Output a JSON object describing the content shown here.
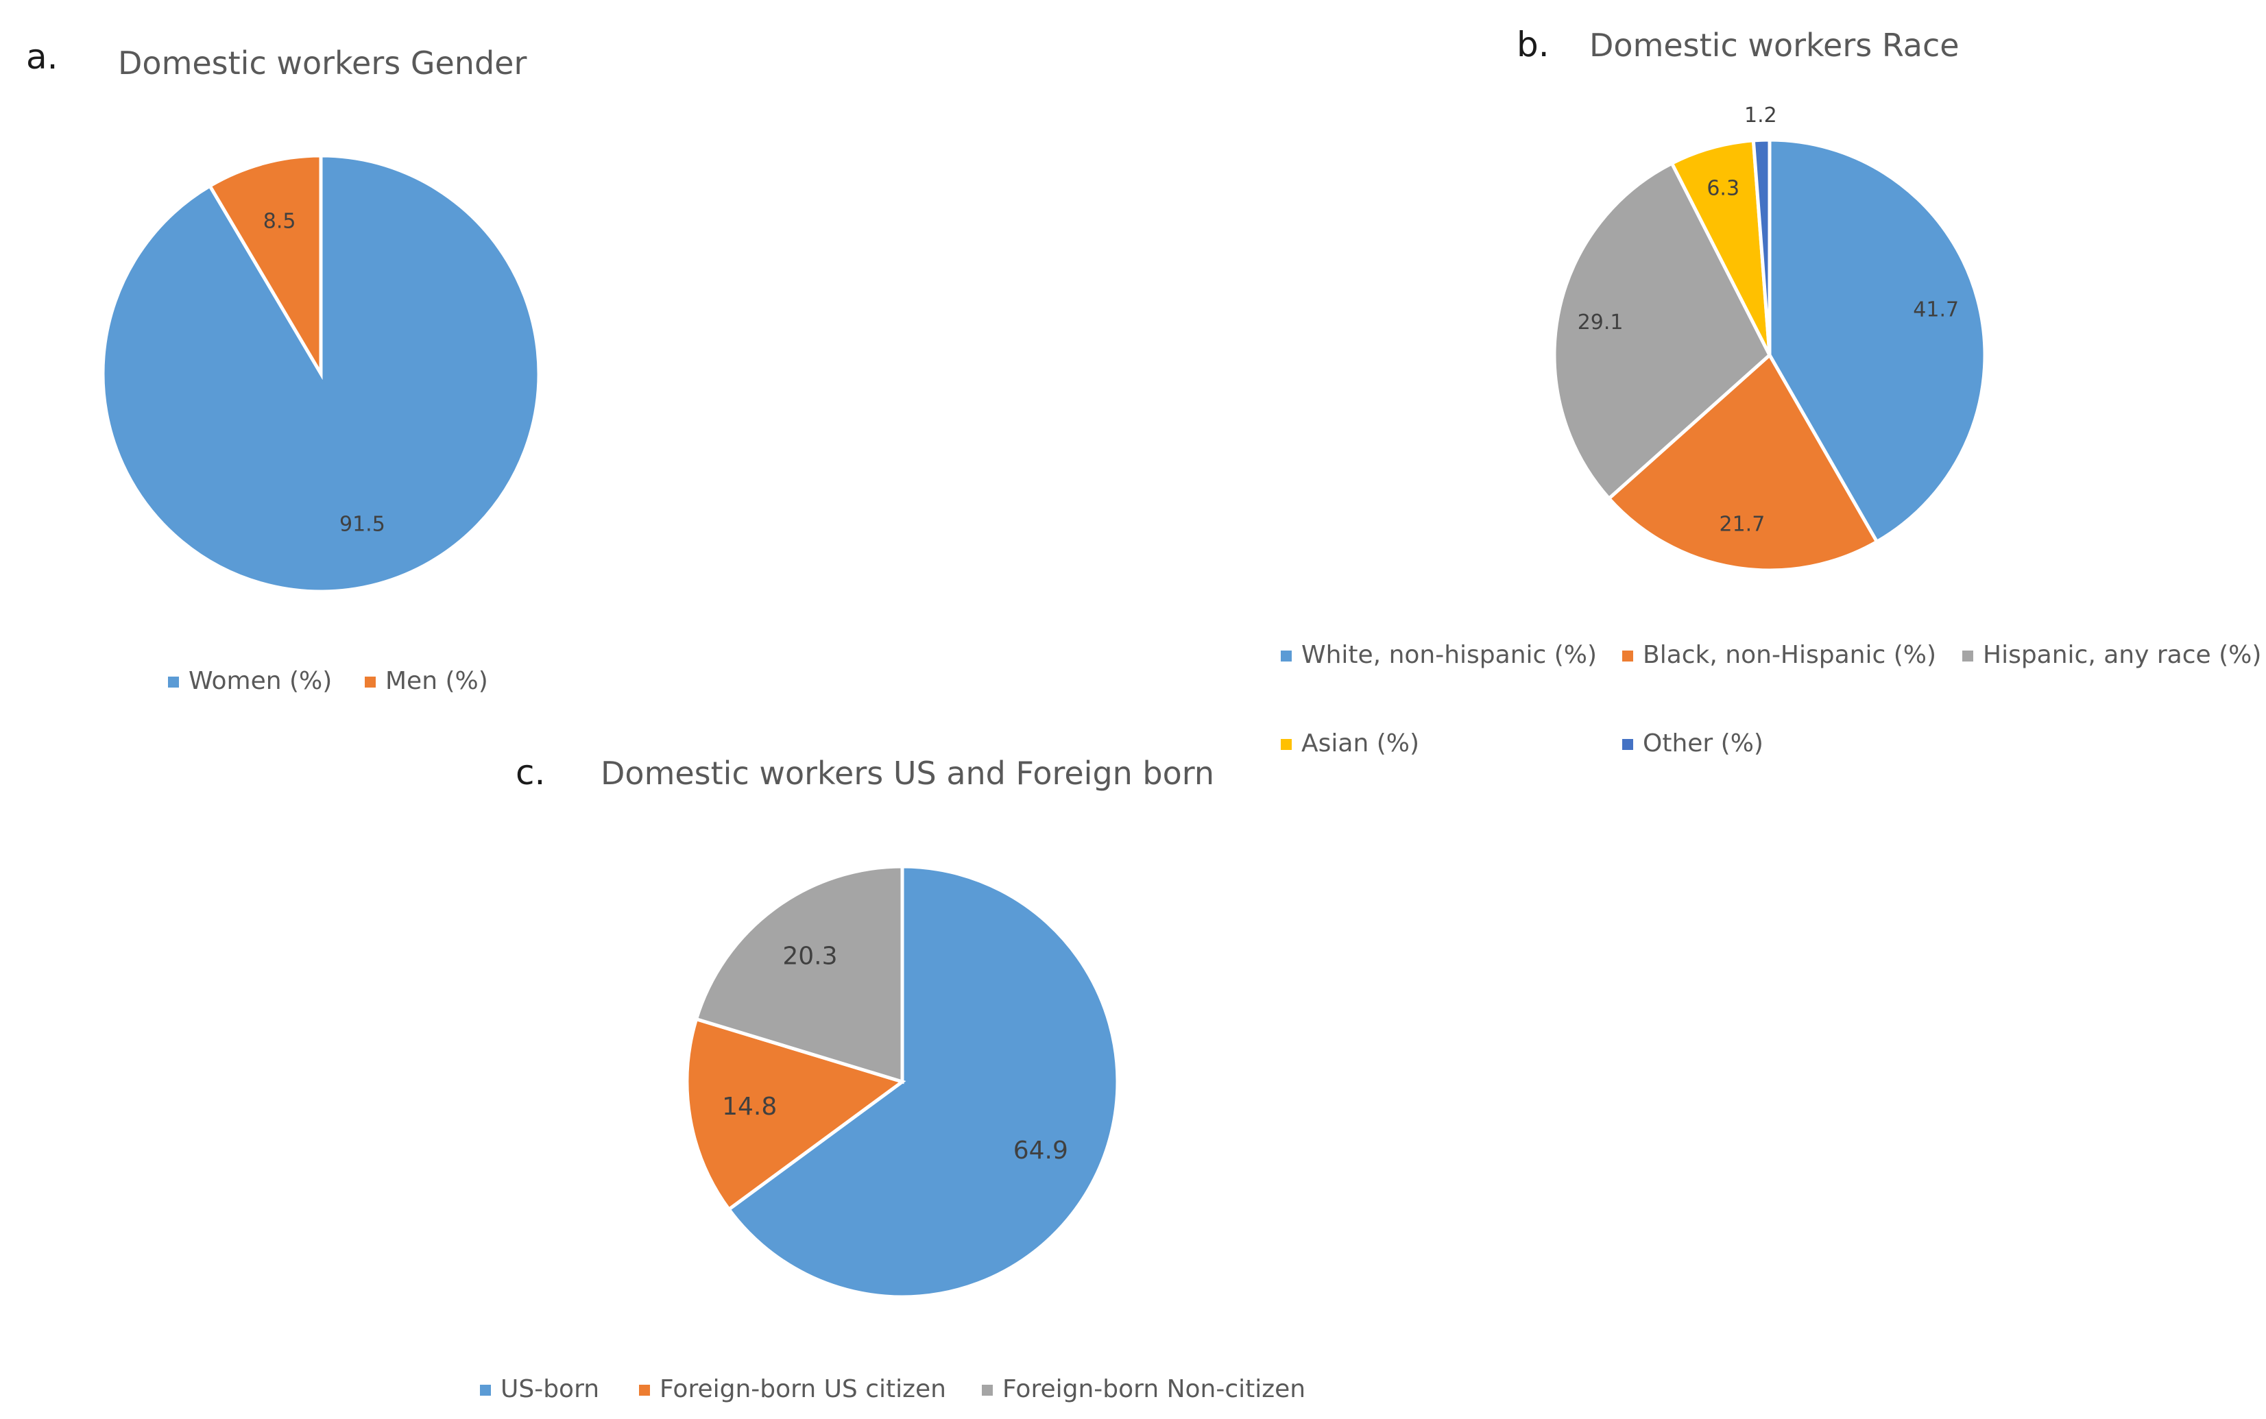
{
  "chart_data": [
    {
      "panel": "a.",
      "type": "pie",
      "title": "Domestic workers Gender",
      "labels": [
        "Women (%)",
        "Men (%)"
      ],
      "values": [
        91.5,
        8.5
      ],
      "data_labels": [
        "91.5",
        "8.5"
      ],
      "colors": [
        "#5B9BD5",
        "#ED7D31"
      ],
      "legend_position": "bottom"
    },
    {
      "panel": "b.",
      "type": "pie",
      "title": "Domestic workers Race",
      "labels": [
        "White, non-hispanic (%)",
        "Black, non-Hispanic (%)",
        "Hispanic, any race (%)",
        "Asian (%)",
        "Other (%)"
      ],
      "values": [
        41.7,
        21.7,
        29.1,
        6.3,
        1.2
      ],
      "data_labels": [
        "41.7",
        "21.7",
        "29.1",
        "6.3",
        "1.2"
      ],
      "colors": [
        "#5B9BD5",
        "#ED7D31",
        "#A5A5A5",
        "#FFC000",
        "#4472C4"
      ],
      "legend_position": "bottom"
    },
    {
      "panel": "c.",
      "type": "pie",
      "title": "Domestic workers US and Foreign born",
      "labels": [
        "US-born",
        "Foreign-born US citizen",
        "Foreign-born Non-citizen"
      ],
      "values": [
        64.9,
        14.8,
        20.3
      ],
      "data_labels": [
        "64.9",
        "14.8",
        "20.3"
      ],
      "colors": [
        "#5B9BD5",
        "#ED7D31",
        "#A5A5A5"
      ],
      "legend_position": "bottom"
    }
  ]
}
